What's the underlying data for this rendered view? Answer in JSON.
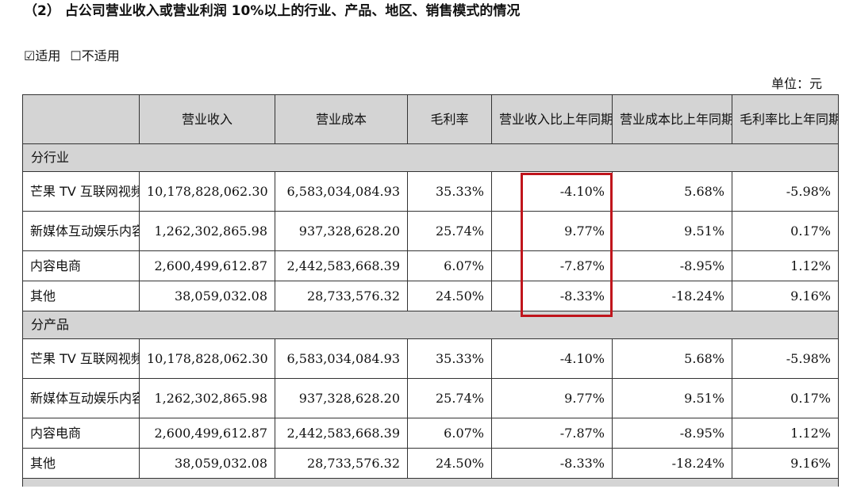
{
  "title": "（2）  占公司营业收入或营业利润 10%以上的行业、产品、地区、销售模式的情况",
  "applicability": {
    "applicable": "☑适用",
    "not_applicable": "☐不适用"
  },
  "unit": "单位：元",
  "headers": [
    "",
    "营业收入",
    "营业成本",
    "毛利率",
    "营业收入比上年同期增减",
    "营业成本比上年同期增减",
    "毛利率比上年同期增减"
  ],
  "sections": [
    {
      "label": "分行业",
      "rows": [
        {
          "name": "芒果 TV 互联网视频业务",
          "revenue": "10,178,828,062.30",
          "cost": "6,583,034,084.93",
          "gross_margin": "35.33%",
          "revenue_yoy": "-4.10%",
          "cost_yoy": "5.68%",
          "margin_yoy": "-5.98%"
        },
        {
          "name": "新媒体互动娱乐内容制作",
          "revenue": "1,262,302,865.98",
          "cost": "937,328,628.20",
          "gross_margin": "25.74%",
          "revenue_yoy": "9.77%",
          "cost_yoy": "9.51%",
          "margin_yoy": "0.17%"
        },
        {
          "name": "内容电商",
          "revenue": "2,600,499,612.87",
          "cost": "2,442,583,668.39",
          "gross_margin": "6.07%",
          "revenue_yoy": "-7.87%",
          "cost_yoy": "-8.95%",
          "margin_yoy": "1.12%"
        },
        {
          "name": "其他",
          "revenue": "38,059,032.08",
          "cost": "28,733,576.32",
          "gross_margin": "24.50%",
          "revenue_yoy": "-8.33%",
          "cost_yoy": "-18.24%",
          "margin_yoy": "9.16%"
        }
      ]
    },
    {
      "label": "分产品",
      "rows": [
        {
          "name": "芒果 TV 互联网视频业务",
          "revenue": "10,178,828,062.30",
          "cost": "6,583,034,084.93",
          "gross_margin": "35.33%",
          "revenue_yoy": "-4.10%",
          "cost_yoy": "5.68%",
          "margin_yoy": "-5.98%"
        },
        {
          "name": "新媒体互动娱乐内容制作",
          "revenue": "1,262,302,865.98",
          "cost": "937,328,628.20",
          "gross_margin": "25.74%",
          "revenue_yoy": "9.77%",
          "cost_yoy": "9.51%",
          "margin_yoy": "0.17%"
        },
        {
          "name": "内容电商",
          "revenue": "2,600,499,612.87",
          "cost": "2,442,583,668.39",
          "gross_margin": "6.07%",
          "revenue_yoy": "-7.87%",
          "cost_yoy": "-8.95%",
          "margin_yoy": "1.12%"
        },
        {
          "name": "其他",
          "revenue": "38,059,032.08",
          "cost": "28,733,576.32",
          "gross_margin": "24.50%",
          "revenue_yoy": "-8.33%",
          "cost_yoy": "-18.24%",
          "margin_yoy": "9.16%"
        }
      ]
    }
  ],
  "colors": {
    "header_bg": "#d4d4d4",
    "highlight": "#c0151c",
    "border": "#333333"
  }
}
